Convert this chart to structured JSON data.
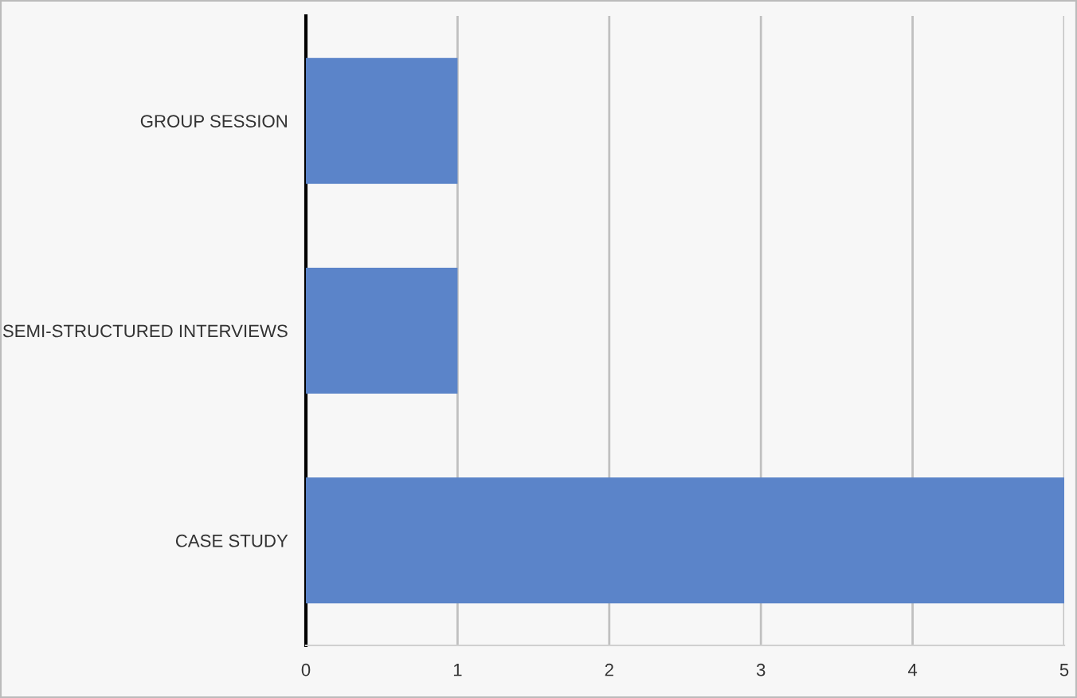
{
  "chart_data": {
    "type": "bar",
    "orientation": "horizontal",
    "categories": [
      "GROUP SESSION",
      "SEMI-STRUCTURED INTERVIEWS",
      "CASE STUDY"
    ],
    "values": [
      1,
      1,
      5
    ],
    "color": "#5b84c9",
    "xlim": [
      0,
      5
    ],
    "xticks": [
      0,
      1,
      2,
      3,
      4,
      5
    ],
    "grid": "x"
  }
}
